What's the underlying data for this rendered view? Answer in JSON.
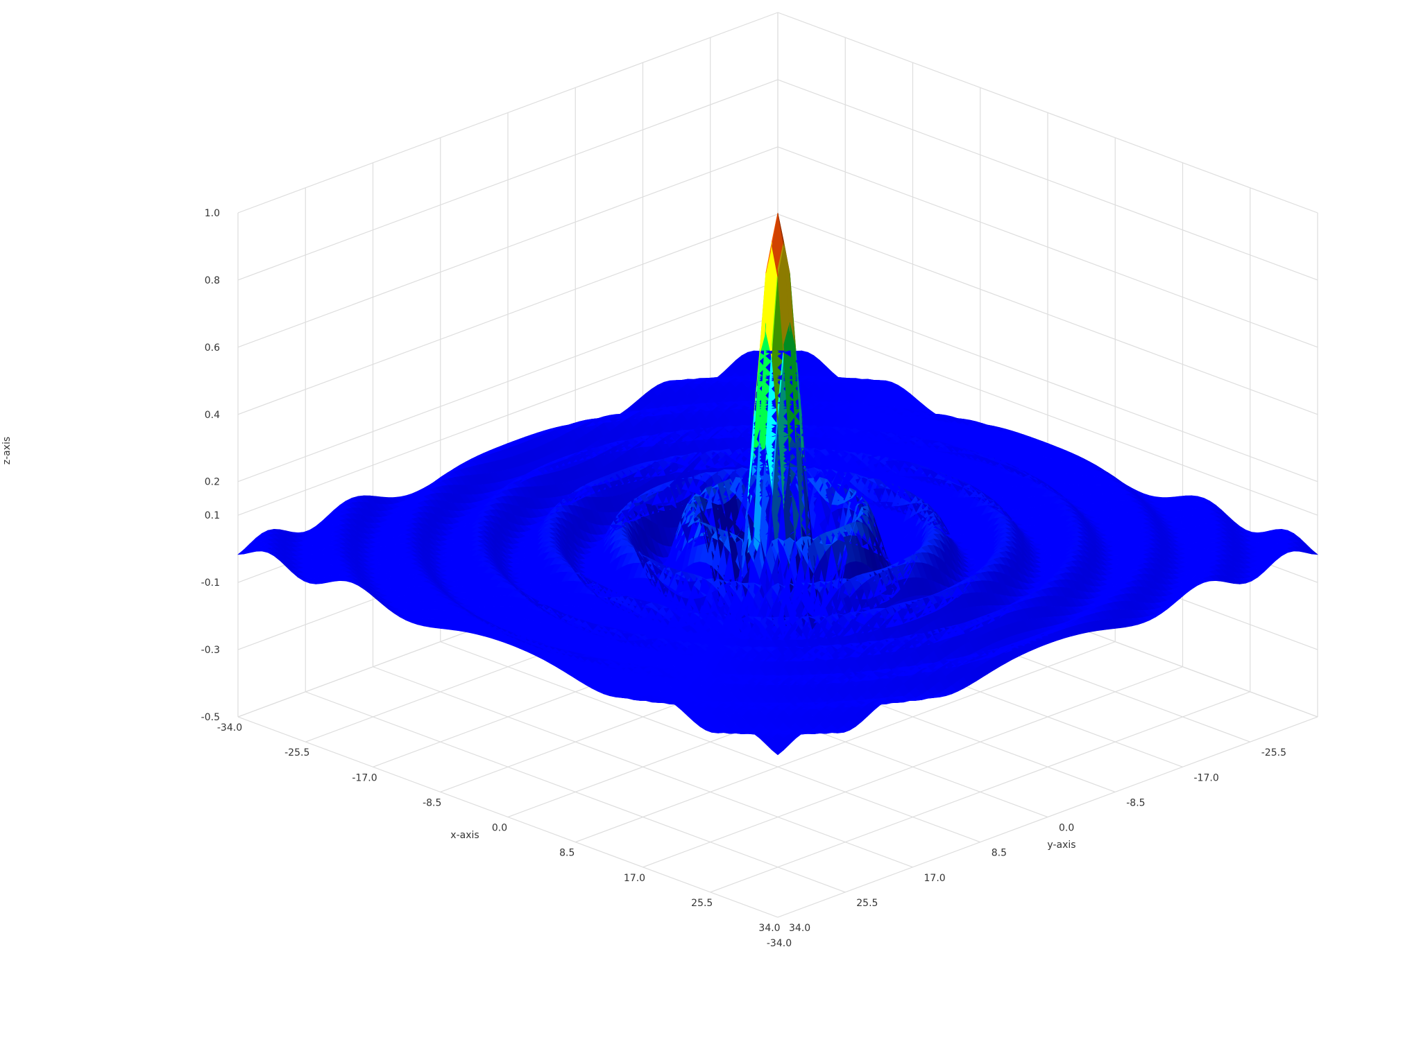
{
  "chart_data": {
    "type": "surface3d",
    "function": "sin(r)/r",
    "colorscale": [
      "#0000ff",
      "#00ffff",
      "#00ff00",
      "#ffff00",
      "#ff0000"
    ],
    "xlabel": "x-axis",
    "ylabel": "y-axis",
    "zlabel": "z-axis",
    "xlim": [
      -34.0,
      34.0
    ],
    "ylim": [
      -34.0,
      34.0
    ],
    "zlim": [
      -0.5,
      1.0
    ],
    "x_ticks": [
      "-34.0",
      "-25.5",
      "-17.0",
      "-8.5",
      "0.0",
      "8.5",
      "17.0",
      "25.5",
      "34.0"
    ],
    "y_ticks": [
      "34.0",
      "25.5",
      "17.0",
      "8.5",
      "0.0",
      "-8.5",
      "-17.0",
      "-25.5",
      "-34.0"
    ],
    "z_ticks": [
      "1.0",
      "0.8",
      "0.6",
      "0.4",
      "0.2",
      "0.1",
      "-0.1",
      "-0.3",
      "-0.5"
    ],
    "z_peak": 1.0,
    "grid": true,
    "legend": "none"
  }
}
